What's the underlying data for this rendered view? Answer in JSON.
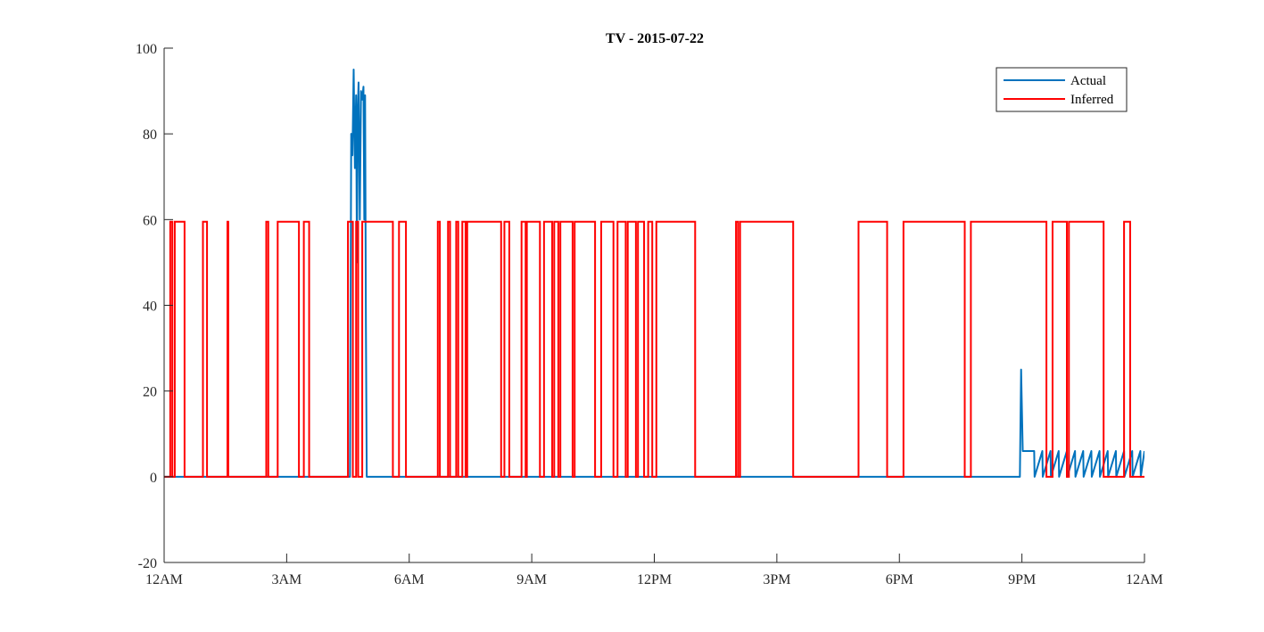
{
  "chart_data": {
    "type": "line",
    "title": "TV - 2015-07-22",
    "xlabel": "",
    "ylabel": "",
    "x_unit": "hours since 12AM",
    "xlim": [
      0,
      24
    ],
    "ylim": [
      -20,
      100
    ],
    "x_ticks": [
      0,
      3,
      6,
      9,
      12,
      15,
      18,
      21,
      24
    ],
    "x_tick_labels": [
      "12AM",
      "3AM",
      "6AM",
      "9AM",
      "12PM",
      "3PM",
      "6PM",
      "9PM",
      "12AM"
    ],
    "y_ticks": [
      -20,
      0,
      20,
      40,
      60,
      80,
      100
    ],
    "y_tick_labels": [
      "-20",
      "0",
      "20",
      "40",
      "60",
      "80",
      "100"
    ],
    "grid": false,
    "legend_position": "top-right",
    "series": [
      {
        "name": "Actual",
        "color": "#0072BD",
        "x": [
          0.0,
          4.55,
          4.58,
          4.61,
          4.64,
          4.67,
          4.7,
          4.72,
          4.74,
          4.76,
          4.79,
          4.82,
          4.85,
          4.88,
          4.9,
          4.92,
          4.94,
          4.96,
          4.98,
          5.0,
          5.02,
          5.05,
          5.1,
          8.5,
          20.95,
          20.98,
          21.02,
          21.1,
          21.3,
          21.31,
          21.5,
          21.51,
          21.7,
          21.71,
          21.9,
          21.91,
          22.1,
          22.11,
          22.3,
          22.31,
          22.5,
          22.51,
          22.7,
          22.71,
          22.9,
          22.91,
          23.1,
          23.11,
          23.3,
          23.31,
          23.5,
          23.51,
          23.7,
          23.71,
          23.9,
          23.91,
          24.0
        ],
        "y": [
          0,
          0,
          80,
          75,
          95,
          72,
          89,
          50,
          85,
          92,
          60,
          90,
          88,
          91,
          60,
          89,
          35,
          0,
          0,
          0,
          0,
          0,
          0,
          0,
          0,
          25,
          6,
          6,
          6,
          0,
          6,
          0,
          6,
          0,
          6,
          0,
          6,
          0,
          6,
          0,
          6,
          0,
          6,
          0,
          6,
          0,
          6,
          0,
          6,
          0,
          6,
          0,
          6,
          0,
          6,
          0,
          6
        ]
      },
      {
        "name": "Inferred",
        "color": "#FF0000",
        "intervals_on": [
          [
            0.15,
            0.2
          ],
          [
            0.26,
            0.5
          ],
          [
            0.95,
            1.05
          ],
          [
            1.55,
            1.57
          ],
          [
            2.5,
            2.55
          ],
          [
            2.78,
            3.3
          ],
          [
            3.42,
            3.55
          ],
          [
            4.5,
            4.62
          ],
          [
            4.7,
            4.75
          ],
          [
            4.85,
            5.6
          ],
          [
            5.75,
            5.92
          ],
          [
            6.7,
            6.75
          ],
          [
            6.95,
            7.0
          ],
          [
            7.15,
            7.2
          ],
          [
            7.3,
            7.38
          ],
          [
            7.42,
            8.25
          ],
          [
            8.33,
            8.45
          ],
          [
            8.75,
            8.85
          ],
          [
            8.88,
            9.2
          ],
          [
            9.3,
            9.5
          ],
          [
            9.55,
            9.65
          ],
          [
            9.7,
            10.0
          ],
          [
            10.05,
            10.55
          ],
          [
            10.7,
            11.0
          ],
          [
            11.1,
            11.3
          ],
          [
            11.35,
            11.55
          ],
          [
            11.6,
            11.75
          ],
          [
            11.85,
            11.95
          ],
          [
            12.05,
            13.0
          ],
          [
            14.0,
            14.05
          ],
          [
            14.1,
            15.4
          ],
          [
            17.0,
            17.7
          ],
          [
            18.1,
            19.6
          ],
          [
            19.75,
            21.6
          ],
          [
            21.75,
            22.1
          ],
          [
            22.15,
            23.0
          ],
          [
            23.5,
            23.65
          ]
        ],
        "on_value": 59.5,
        "off_value": 0
      }
    ]
  }
}
